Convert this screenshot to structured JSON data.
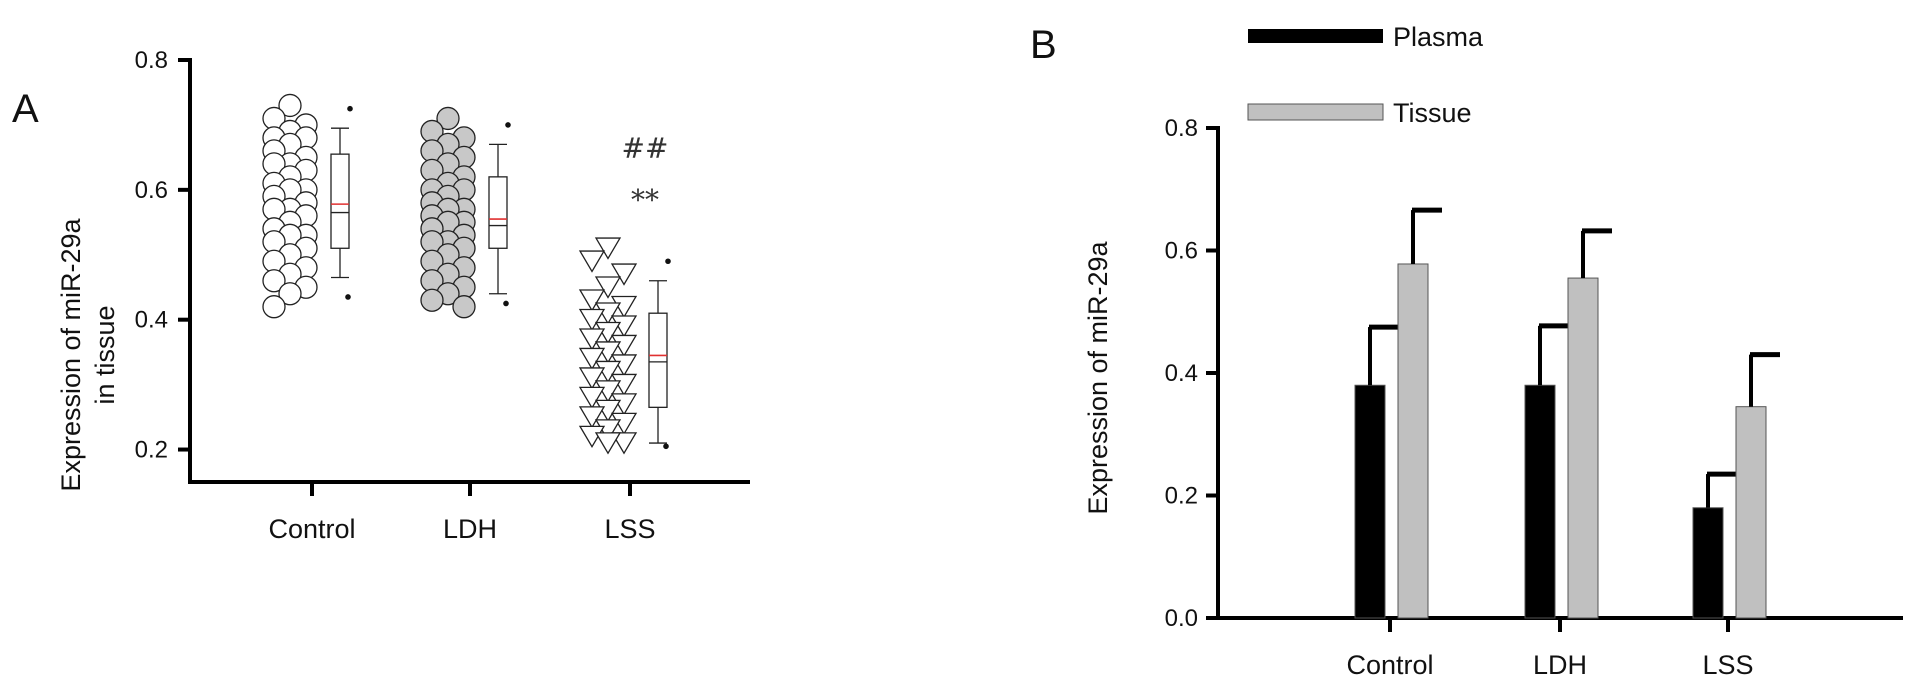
{
  "figure": {
    "panel_a_letter": "A",
    "panel_b_letter": "B"
  },
  "chart_data": [
    {
      "type": "scatter",
      "panel": "A",
      "ylabel_line1": "Expression of miR-29a",
      "ylabel_line2": "in tissue",
      "xlabel": "",
      "ylim": [
        0.15,
        0.8
      ],
      "yticks": [
        0.2,
        0.4,
        0.6,
        0.8
      ],
      "ytick_labels": [
        "0.2",
        "0.4",
        "0.6",
        "0.8"
      ],
      "grid": false,
      "categories": [
        "Control",
        "LDH",
        "LSS"
      ],
      "groups": [
        {
          "category": "Control",
          "marker": "circle-open",
          "marker_color": "#ffffff",
          "points": [
            0.73,
            0.71,
            0.7,
            0.69,
            0.68,
            0.68,
            0.67,
            0.66,
            0.65,
            0.64,
            0.64,
            0.63,
            0.62,
            0.61,
            0.6,
            0.6,
            0.59,
            0.58,
            0.57,
            0.57,
            0.56,
            0.55,
            0.54,
            0.53,
            0.53,
            0.52,
            0.51,
            0.5,
            0.49,
            0.48,
            0.47,
            0.46,
            0.45,
            0.44,
            0.42
          ],
          "box": {
            "whisker_low": 0.465,
            "q1": 0.51,
            "median": 0.565,
            "mean": 0.578,
            "q3": 0.655,
            "whisker_high": 0.695,
            "outlier_low": 0.435,
            "outlier_high": 0.725
          }
        },
        {
          "category": "LDH",
          "marker": "circle-filled",
          "marker_color": "#c8c8c8",
          "points": [
            0.71,
            0.69,
            0.68,
            0.67,
            0.66,
            0.65,
            0.64,
            0.63,
            0.62,
            0.61,
            0.6,
            0.6,
            0.59,
            0.58,
            0.57,
            0.57,
            0.56,
            0.55,
            0.55,
            0.54,
            0.53,
            0.52,
            0.52,
            0.51,
            0.5,
            0.49,
            0.48,
            0.47,
            0.46,
            0.45,
            0.44,
            0.43,
            0.42
          ],
          "box": {
            "whisker_low": 0.44,
            "q1": 0.51,
            "median": 0.545,
            "mean": 0.555,
            "q3": 0.62,
            "whisker_high": 0.67,
            "outlier_low": 0.425,
            "outlier_high": 0.7
          }
        },
        {
          "category": "LSS",
          "marker": "triangle-down-open",
          "marker_color": "#ffffff",
          "points": [
            0.51,
            0.49,
            0.47,
            0.45,
            0.43,
            0.42,
            0.41,
            0.4,
            0.39,
            0.38,
            0.37,
            0.36,
            0.35,
            0.34,
            0.33,
            0.32,
            0.31,
            0.3,
            0.29,
            0.28,
            0.27,
            0.26,
            0.25,
            0.24,
            0.23,
            0.22,
            0.21,
            0.21
          ],
          "box": {
            "whisker_low": 0.21,
            "q1": 0.265,
            "median": 0.335,
            "mean": 0.345,
            "q3": 0.41,
            "whisker_high": 0.46,
            "outlier_low": 0.205,
            "outlier_high": 0.49
          }
        }
      ],
      "annotations": [
        {
          "category": "LSS",
          "text": "##",
          "y": 0.665
        },
        {
          "category": "LSS",
          "text": "**",
          "y": 0.585
        }
      ]
    },
    {
      "type": "bar",
      "panel": "B",
      "ylabel": "Expression of miR-29a",
      "xlabel": "",
      "ylim": [
        0.0,
        0.8
      ],
      "yticks": [
        0.0,
        0.2,
        0.4,
        0.6,
        0.8
      ],
      "ytick_labels": [
        "0.0",
        "0.2",
        "0.4",
        "0.6",
        "0.8"
      ],
      "grid": false,
      "legend_position": "top-left",
      "categories": [
        "Control",
        "LDH",
        "LSS"
      ],
      "series": [
        {
          "name": "Plasma",
          "color": "#000000",
          "values": [
            0.38,
            0.38,
            0.18
          ],
          "errors": [
            0.095,
            0.097,
            0.055
          ]
        },
        {
          "name": "Tissue",
          "color": "#c0c0c0",
          "values": [
            0.578,
            0.555,
            0.345
          ],
          "errors": [
            0.088,
            0.077,
            0.085
          ]
        }
      ]
    }
  ]
}
